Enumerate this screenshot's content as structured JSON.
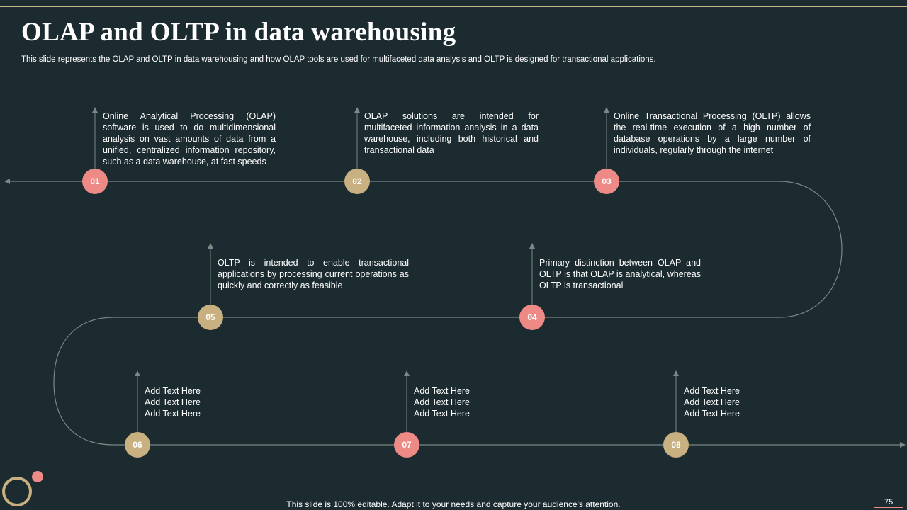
{
  "title": "OLAP and OLTP in data warehousing",
  "subtitle": "This slide represents the OLAP and OLTP in data warehousing and how OLAP tools are used for multifaceted data analysis and OLTP is designed for transactional applications.",
  "steps": [
    {
      "num": "01",
      "text": "Online Analytical Processing (OLAP) software is used to do multidimensional analysis on vast amounts of data from a unified, centralized information repository, such as a data warehouse, at fast speeds"
    },
    {
      "num": "02",
      "text": "OLAP solutions are intended for multifaceted information analysis in a data warehouse, including both historical and transactional data"
    },
    {
      "num": "03",
      "text": "Online Transactional Processing (OLTP) allows the real-time execution of a high number of database operations by a large number of individuals, regularly through the internet"
    },
    {
      "num": "04",
      "text": "Primary distinction between OLAP and OLTP is that OLAP is analytical, whereas OLTP is transactional"
    },
    {
      "num": "05",
      "text": "OLTP is intended to enable transactional applications by processing current operations as quickly and correctly as feasible"
    },
    {
      "num": "06",
      "lines": [
        "Add Text Here",
        "Add Text Here",
        "Add Text Here"
      ]
    },
    {
      "num": "07",
      "lines": [
        "Add Text Here",
        "Add Text Here",
        "Add Text Here"
      ]
    },
    {
      "num": "08",
      "lines": [
        "Add Text Here",
        "Add Text Here",
        "Add Text Here"
      ]
    }
  ],
  "footer": "This slide is 100% editable. Adapt it to your needs and capture your audience's attention.",
  "page_number": "75",
  "colors": {
    "background": "#1c2b30",
    "pink": "#ee8a86",
    "tan": "#c8b080",
    "line": "#7d8784"
  }
}
